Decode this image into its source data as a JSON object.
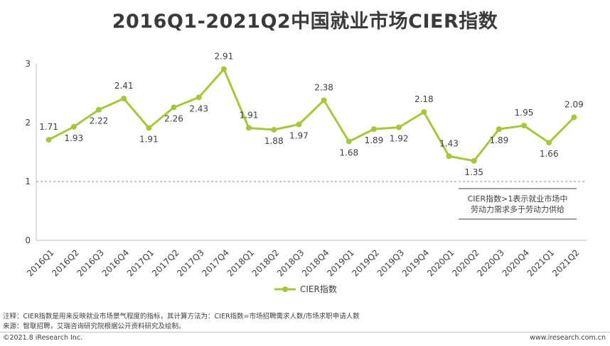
{
  "header": {
    "title": "2016Q1-2021Q2中国就业市场CIER指数"
  },
  "chart_data": {
    "type": "line",
    "title": "2016Q1-2021Q2中国就业市场CIER指数",
    "categories": [
      "2016Q1",
      "2016Q2",
      "2016Q3",
      "2016Q4",
      "2017Q1",
      "2017Q2",
      "2017Q3",
      "2017Q4",
      "2018Q1",
      "2018Q2",
      "2018Q3",
      "2018Q4",
      "2019Q1",
      "2019Q2",
      "2019Q3",
      "2019Q4",
      "2020Q1",
      "2020Q2",
      "2020Q3",
      "2020Q4",
      "2021Q1",
      "2021Q2"
    ],
    "series": [
      {
        "name": "CIER指数",
        "values": [
          1.71,
          1.93,
          2.22,
          2.41,
          1.91,
          2.26,
          2.43,
          2.91,
          1.91,
          1.88,
          1.97,
          2.38,
          1.68,
          1.89,
          1.92,
          2.18,
          1.43,
          1.35,
          1.89,
          1.95,
          1.66,
          2.09
        ]
      }
    ],
    "y_ticks": [
      0,
      1,
      2,
      3
    ],
    "ylim": [
      0,
      3
    ],
    "reference_line": 1,
    "annotation": [
      "CIER指数>1表示就业市场中",
      "劳动力需求多于劳动力供给"
    ],
    "legend_position": "bottom-center",
    "line_color": "#a5c83a",
    "grid": false
  },
  "notes": {
    "note1": "注释：CIER指数是用来反映就业市场景气程度的指标，其计算方法为：CIER指数=市场招聘需求人数/市场求职申请人数",
    "source": "来源：智联招聘，艾瑞咨询研究院根据公开资料研究及绘制。"
  },
  "footer": {
    "copyright": "©2021.8 iResearch Inc.",
    "website": "www.iresearch.com.cn"
  }
}
